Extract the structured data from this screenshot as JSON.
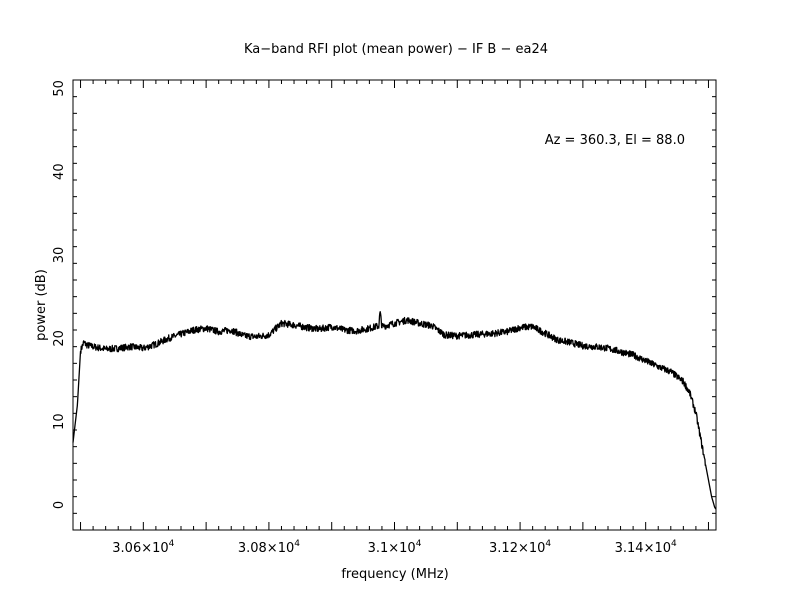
{
  "chart_data": {
    "type": "line",
    "title": "Ka−band RFI plot (mean power) − IF B − ea24",
    "xlabel": "frequency (MHz)",
    "ylabel": "power (dB)",
    "annotation": "Az = 360.3, El = 88.0",
    "xlim": [
      30488,
      31512
    ],
    "ylim": [
      -3,
      51
    ],
    "x_ticks": [
      {
        "value": 30600,
        "mantissa": "3.06",
        "exp": "4"
      },
      {
        "value": 30800,
        "mantissa": "3.08",
        "exp": "4"
      },
      {
        "value": 31000,
        "mantissa": "3.1",
        "exp": "4"
      },
      {
        "value": 31200,
        "mantissa": "3.12",
        "exp": "4"
      },
      {
        "value": 31400,
        "mantissa": "3.14",
        "exp": "4"
      }
    ],
    "y_ticks": [
      0,
      10,
      20,
      30,
      40,
      50
    ],
    "line_color": "#000000",
    "series": [
      {
        "x": [
          30488,
          30495,
          30500,
          30505,
          30510,
          30520,
          30540,
          30560,
          30580,
          30600,
          30620,
          30640,
          30660,
          30680,
          30700,
          30720,
          30740,
          30760,
          30780,
          30800,
          30820,
          30840,
          30860,
          30880,
          30900,
          30920,
          30940,
          30960,
          30975,
          30977,
          30980,
          31000,
          31020,
          31040,
          31060,
          31080,
          31100,
          31120,
          31140,
          31160,
          31180,
          31200,
          31220,
          31240,
          31260,
          31280,
          31300,
          31320,
          31340,
          31360,
          31380,
          31400,
          31420,
          31440,
          31460,
          31470,
          31480,
          31490,
          31500,
          31505,
          31510,
          31512
        ],
        "y": [
          7.5,
          12,
          18.5,
          19.5,
          19.2,
          19.0,
          18.7,
          18.8,
          19.0,
          18.8,
          19.3,
          20.0,
          20.5,
          21.0,
          21.2,
          20.8,
          21.0,
          20.3,
          20.2,
          20.4,
          21.8,
          21.6,
          21.3,
          21.1,
          21.4,
          21.0,
          20.9,
          21.2,
          21.5,
          23.2,
          21.4,
          21.8,
          22.2,
          21.8,
          21.5,
          20.4,
          20.3,
          20.4,
          20.5,
          20.6,
          20.8,
          21.3,
          21.4,
          20.6,
          19.8,
          19.5,
          19.1,
          19.0,
          18.8,
          18.4,
          18.0,
          17.3,
          16.6,
          16.0,
          14.8,
          13.5,
          11.0,
          7.0,
          3.0,
          1.0,
          -0.3,
          -0.5
        ]
      }
    ]
  }
}
